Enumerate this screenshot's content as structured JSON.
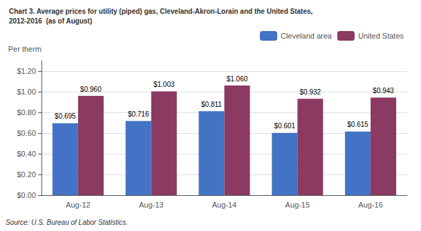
{
  "chart_data": {
    "type": "bar",
    "title": "Chart 3. Average prices for utility (piped) gas, Cleveland-Akron-Lorain and the United States,",
    "subtitle": "2012-2016  (as of August)",
    "ylabel": "Per therm",
    "source": "Source: U.S. Bureau of Labor Statistics.",
    "categories": [
      "Aug-12",
      "Aug-13",
      "Aug-14",
      "Aug-15",
      "Aug-16"
    ],
    "series": [
      {
        "name": "Cleveland area",
        "color": "#4472C4",
        "values": [
          0.695,
          0.716,
          0.811,
          0.601,
          0.615
        ],
        "value_labels": [
          "$0.695",
          "$0.716",
          "$0.811",
          "$0.601",
          "$0.615"
        ]
      },
      {
        "name": "United States",
        "color": "#8B3A62",
        "values": [
          0.96,
          1.003,
          1.06,
          0.932,
          0.943
        ],
        "value_labels": [
          "$0.960",
          "$1.003",
          "$1.060",
          "$0.932",
          "$0.943"
        ]
      }
    ],
    "ylim": [
      0,
      1.3
    ],
    "yticks": [
      {
        "value": 0.0,
        "label": "$0.00"
      },
      {
        "value": 0.2,
        "label": "$0.20"
      },
      {
        "value": 0.4,
        "label": "$0.40"
      },
      {
        "value": 0.6,
        "label": "$0.60"
      },
      {
        "value": 0.8,
        "label": "$0.80"
      },
      {
        "value": 1.0,
        "label": "$1.00"
      },
      {
        "value": 1.2,
        "label": "$1.20"
      }
    ],
    "grid": true,
    "legend": "upper right",
    "data_labels": true
  }
}
